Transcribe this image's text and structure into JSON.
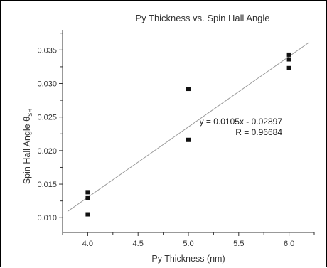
{
  "chart_data": {
    "type": "scatter",
    "title": "Py Thickness vs. Spin Hall Angle",
    "xlabel": "Py Thickness (nm)",
    "ylabel": "Spin Hall Angle θ",
    "ylabel_subscript": "SH",
    "xlim": [
      3.75,
      6.25
    ],
    "ylim": [
      0.0078,
      0.038
    ],
    "x_ticks": [
      "4.0",
      "4.5",
      "5.0",
      "5.5",
      "6.0"
    ],
    "y_ticks": [
      "0.010",
      "0.015",
      "0.020",
      "0.025",
      "0.030",
      "0.035"
    ],
    "grid": false,
    "series": [
      {
        "points": [
          {
            "x": 4.0,
            "y": 0.0138
          },
          {
            "x": 4.0,
            "y": 0.0129
          },
          {
            "x": 4.0,
            "y": 0.0105
          },
          {
            "x": 5.0,
            "y": 0.0292
          },
          {
            "x": 5.0,
            "y": 0.0216
          },
          {
            "x": 6.0,
            "y": 0.0343
          },
          {
            "x": 6.0,
            "y": 0.0336
          },
          {
            "x": 6.0,
            "y": 0.0323
          }
        ]
      }
    ],
    "fit": {
      "slope": 0.0105,
      "intercept": -0.02897,
      "x_range": [
        3.8,
        6.2
      ],
      "equation_text": "y = 0.0105x - 0.02897",
      "r_text": "R = 0.96684"
    },
    "colors": {
      "markers": "#111111",
      "fit_line": "#9a9a9a",
      "axes": "#333333"
    }
  }
}
